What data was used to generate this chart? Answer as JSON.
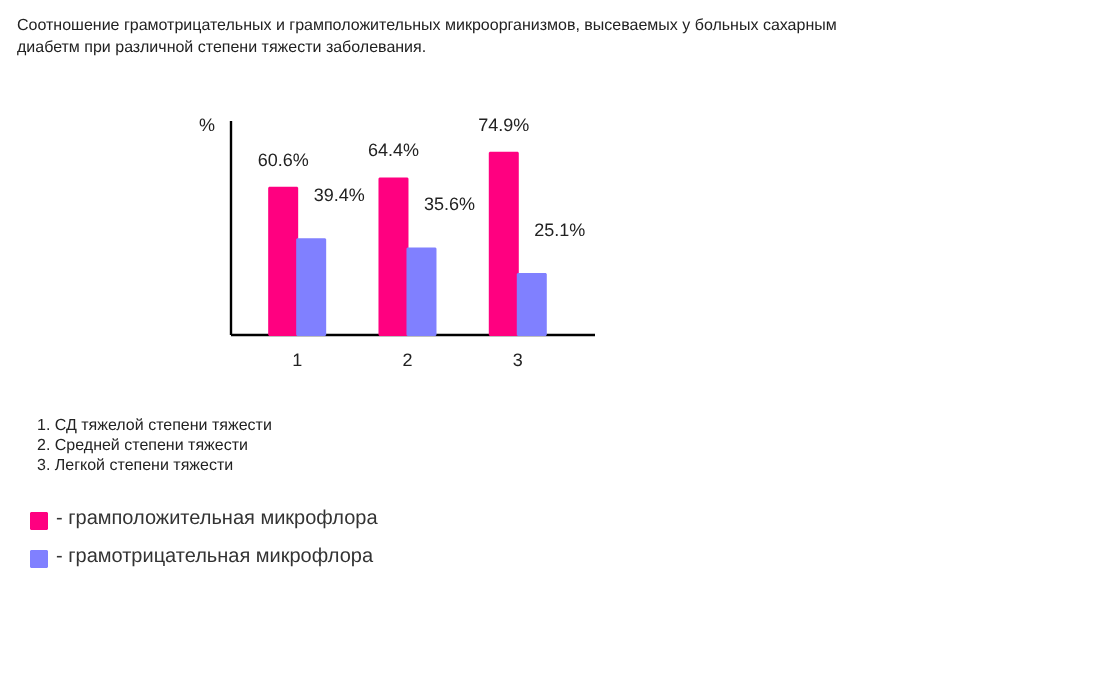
{
  "chart_data": {
    "type": "bar",
    "title": "Соотношение грамотрицательных и грамположительных микроорганизмов, высеваемых у больных сахарным\nдиабетм при различной степени тяжести заболевания.",
    "ylabel": "%",
    "categories": [
      "1",
      "2",
      "3"
    ],
    "series": [
      {
        "name": "- грамположительная микрофлора",
        "color": "#ff0080",
        "values": [
          60.6,
          64.4,
          74.9
        ],
        "value_labels": [
          "60.6%",
          "64.4%",
          "74.9%"
        ]
      },
      {
        "name": "- грамотрицательная микрофлора",
        "color": "#8080ff",
        "values": [
          39.4,
          35.6,
          25.1
        ],
        "value_labels": [
          "39.4%",
          "35.6%",
          "25.1%"
        ]
      }
    ],
    "annotations": [
      "1.   СД тяжелой степени тяжести",
      "2.   Средней степени тяжести",
      "3.   Легкой степени тяжести"
    ],
    "ylim": [
      0,
      88
    ],
    "tick_labels": "x",
    "legend": "bottom"
  }
}
